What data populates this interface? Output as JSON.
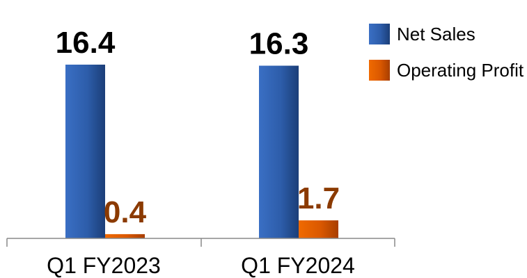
{
  "chart_data": {
    "type": "bar",
    "categories": [
      "Q1 FY2023",
      "Q1 FY2024"
    ],
    "series": [
      {
        "name": "Net Sales",
        "values": [
          16.4,
          16.3
        ],
        "labels": [
          "16.4",
          "16.3"
        ],
        "color": "#2E5FAD",
        "label_color": "#000000"
      },
      {
        "name": "Operating Profit",
        "values": [
          0.4,
          1.7
        ],
        "labels": [
          "0.4",
          "1.7"
        ],
        "color": "#E05A00",
        "label_color": "#8B3A00"
      }
    ],
    "title": "",
    "xlabel": "",
    "ylabel": "",
    "ylim": [
      0,
      16.4
    ],
    "grid": false,
    "legend": "top-right"
  }
}
